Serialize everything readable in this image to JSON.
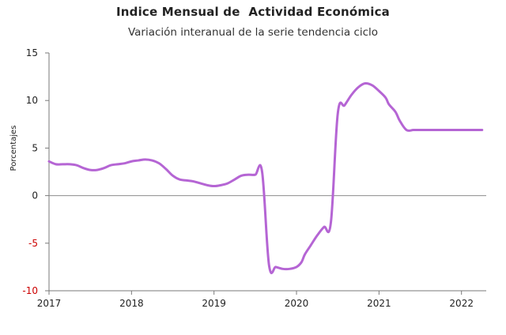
{
  "chart_data": {
    "type": "line",
    "title": "Indice Mensual de  Actividad Económica",
    "subtitle": "Variación interanual de la serie tendencia ciclo",
    "xlabel": "",
    "ylabel": "Porcentajes",
    "xlim": [
      2017,
      2022.3
    ],
    "ylim": [
      -10,
      15
    ],
    "x_ticks": [
      "2017",
      "2018",
      "2019",
      "2020",
      "2021",
      "2022"
    ],
    "y_ticks": [
      "15",
      "10",
      "5",
      "0",
      "-5",
      "-10"
    ],
    "grid": false,
    "line_color": "#b565d4",
    "negative_tick_color": "#cc0000",
    "series": [
      {
        "x": [
          2017.0,
          2017.083,
          2017.167,
          2017.25,
          2017.333,
          2017.417,
          2017.5,
          2017.583,
          2017.667,
          2017.75,
          2017.833,
          2017.917,
          2018.0,
          2018.083,
          2018.167,
          2018.25,
          2018.333,
          2018.417,
          2018.5,
          2018.583,
          2018.667,
          2018.75,
          2018.833,
          2018.917,
          2019.0,
          2019.083,
          2019.167,
          2019.25,
          2019.333,
          2019.417,
          2019.5,
          2019.583,
          2019.667,
          2019.75,
          2019.833,
          2019.917,
          2020.0,
          2020.06,
          2020.1,
          2020.167,
          2020.25,
          2020.333,
          2020.417,
          2020.5,
          2020.583,
          2020.667,
          2020.75,
          2020.833,
          2020.917,
          2021.0,
          2021.08,
          2021.12,
          2021.2,
          2021.25,
          2021.333,
          2021.417,
          2021.5,
          2021.583,
          2021.667,
          2021.75,
          2021.833,
          2021.917,
          2022.0,
          2022.083,
          2022.167,
          2022.25
        ],
        "values": [
          3.6,
          3.3,
          3.3,
          3.3,
          3.2,
          2.9,
          2.7,
          2.7,
          2.9,
          3.2,
          3.3,
          3.4,
          3.6,
          3.7,
          3.8,
          3.7,
          3.4,
          2.8,
          2.1,
          1.7,
          1.6,
          1.5,
          1.3,
          1.1,
          1.0,
          1.1,
          1.3,
          1.7,
          2.1,
          2.2,
          2.2,
          2.5,
          -7.3,
          -7.5,
          -7.7,
          -7.7,
          -7.5,
          -7.0,
          -6.2,
          -5.3,
          -4.2,
          -3.3,
          -2.8,
          8.6,
          9.5,
          10.6,
          11.4,
          11.8,
          11.6,
          11.0,
          10.3,
          9.6,
          8.8,
          7.9,
          6.9,
          6.9,
          6.9,
          6.9,
          6.9,
          6.9,
          6.9,
          6.9,
          6.9,
          6.9,
          6.9,
          6.9
        ]
      }
    ]
  }
}
